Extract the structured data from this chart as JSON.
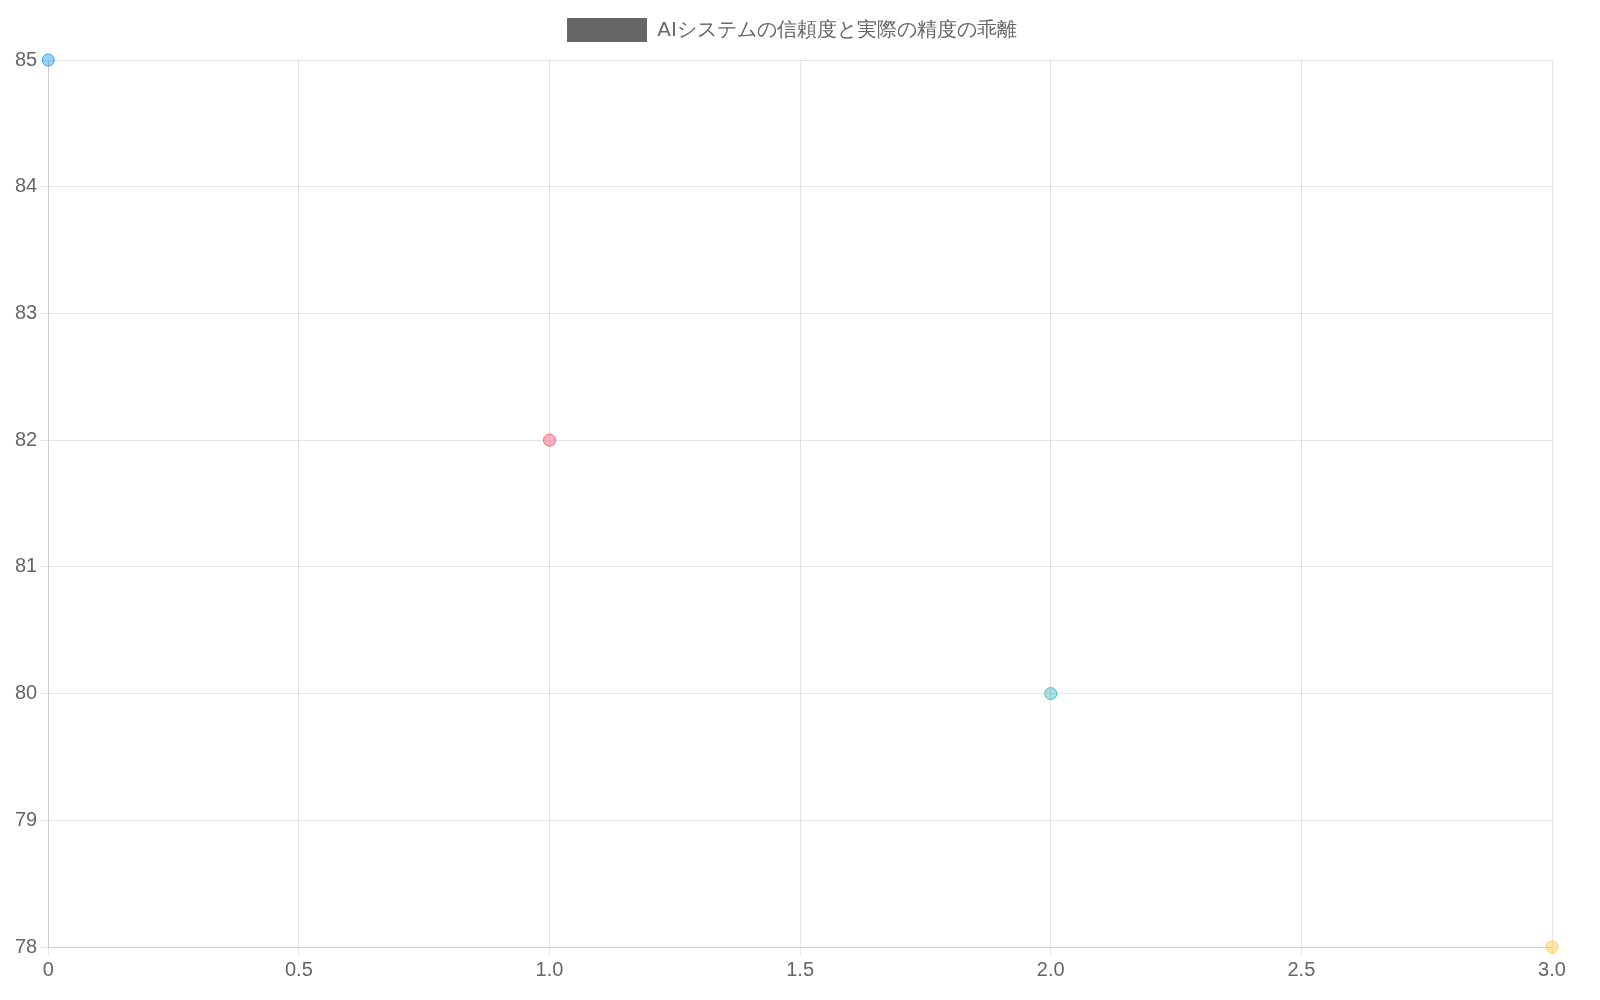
{
  "chart_data": {
    "type": "scatter",
    "x": [
      0,
      1,
      2,
      3
    ],
    "series": [
      {
        "name": "AIシステムの信頼度と実際の精度の乖離",
        "color": "#666666",
        "colors": [
          "#36a2eb",
          "#ff6384",
          "#4bc0c0",
          "#ffcd56"
        ],
        "values": [
          85,
          82,
          80,
          78
        ]
      }
    ],
    "xlim": [
      0,
      3
    ],
    "xticks": [
      0,
      {
        "value": 0.5,
        "label": "0.5"
      },
      {
        "value": 1,
        "label": "1.0"
      },
      {
        "value": 1.5,
        "label": "1.5"
      },
      {
        "value": 2,
        "label": "2.0"
      },
      {
        "value": 2.5,
        "label": "2.5"
      },
      {
        "value": 3,
        "label": "3.0"
      }
    ],
    "ylim": [
      78,
      85
    ],
    "yticks": [
      78,
      79,
      80,
      81,
      82,
      83,
      84,
      85
    ],
    "grid": true,
    "legend": "top",
    "marker": "circle"
  }
}
